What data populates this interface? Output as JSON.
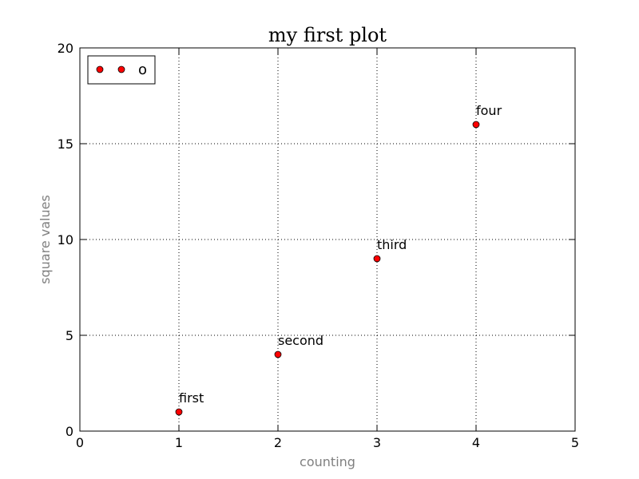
{
  "chart_data": {
    "type": "scatter",
    "title": "my first plot",
    "xlabel": "counting",
    "ylabel": "square values",
    "xlim": [
      0,
      5
    ],
    "ylim": [
      0,
      20
    ],
    "xticks": [
      0,
      1,
      2,
      3,
      4,
      5
    ],
    "yticks": [
      0,
      5,
      10,
      15,
      20
    ],
    "grid": true,
    "legend_position": "top-left",
    "series": [
      {
        "name": "o",
        "x": [
          1,
          2,
          3,
          4
        ],
        "y": [
          1,
          4,
          9,
          16
        ],
        "color": "#ff0000"
      }
    ],
    "annotations": [
      {
        "text": "first",
        "x": 1,
        "y": 1
      },
      {
        "text": "second",
        "x": 2,
        "y": 4
      },
      {
        "text": "third",
        "x": 3,
        "y": 9
      },
      {
        "text": "four",
        "x": 4,
        "y": 16
      }
    ],
    "axis_label_color": "#808080"
  }
}
